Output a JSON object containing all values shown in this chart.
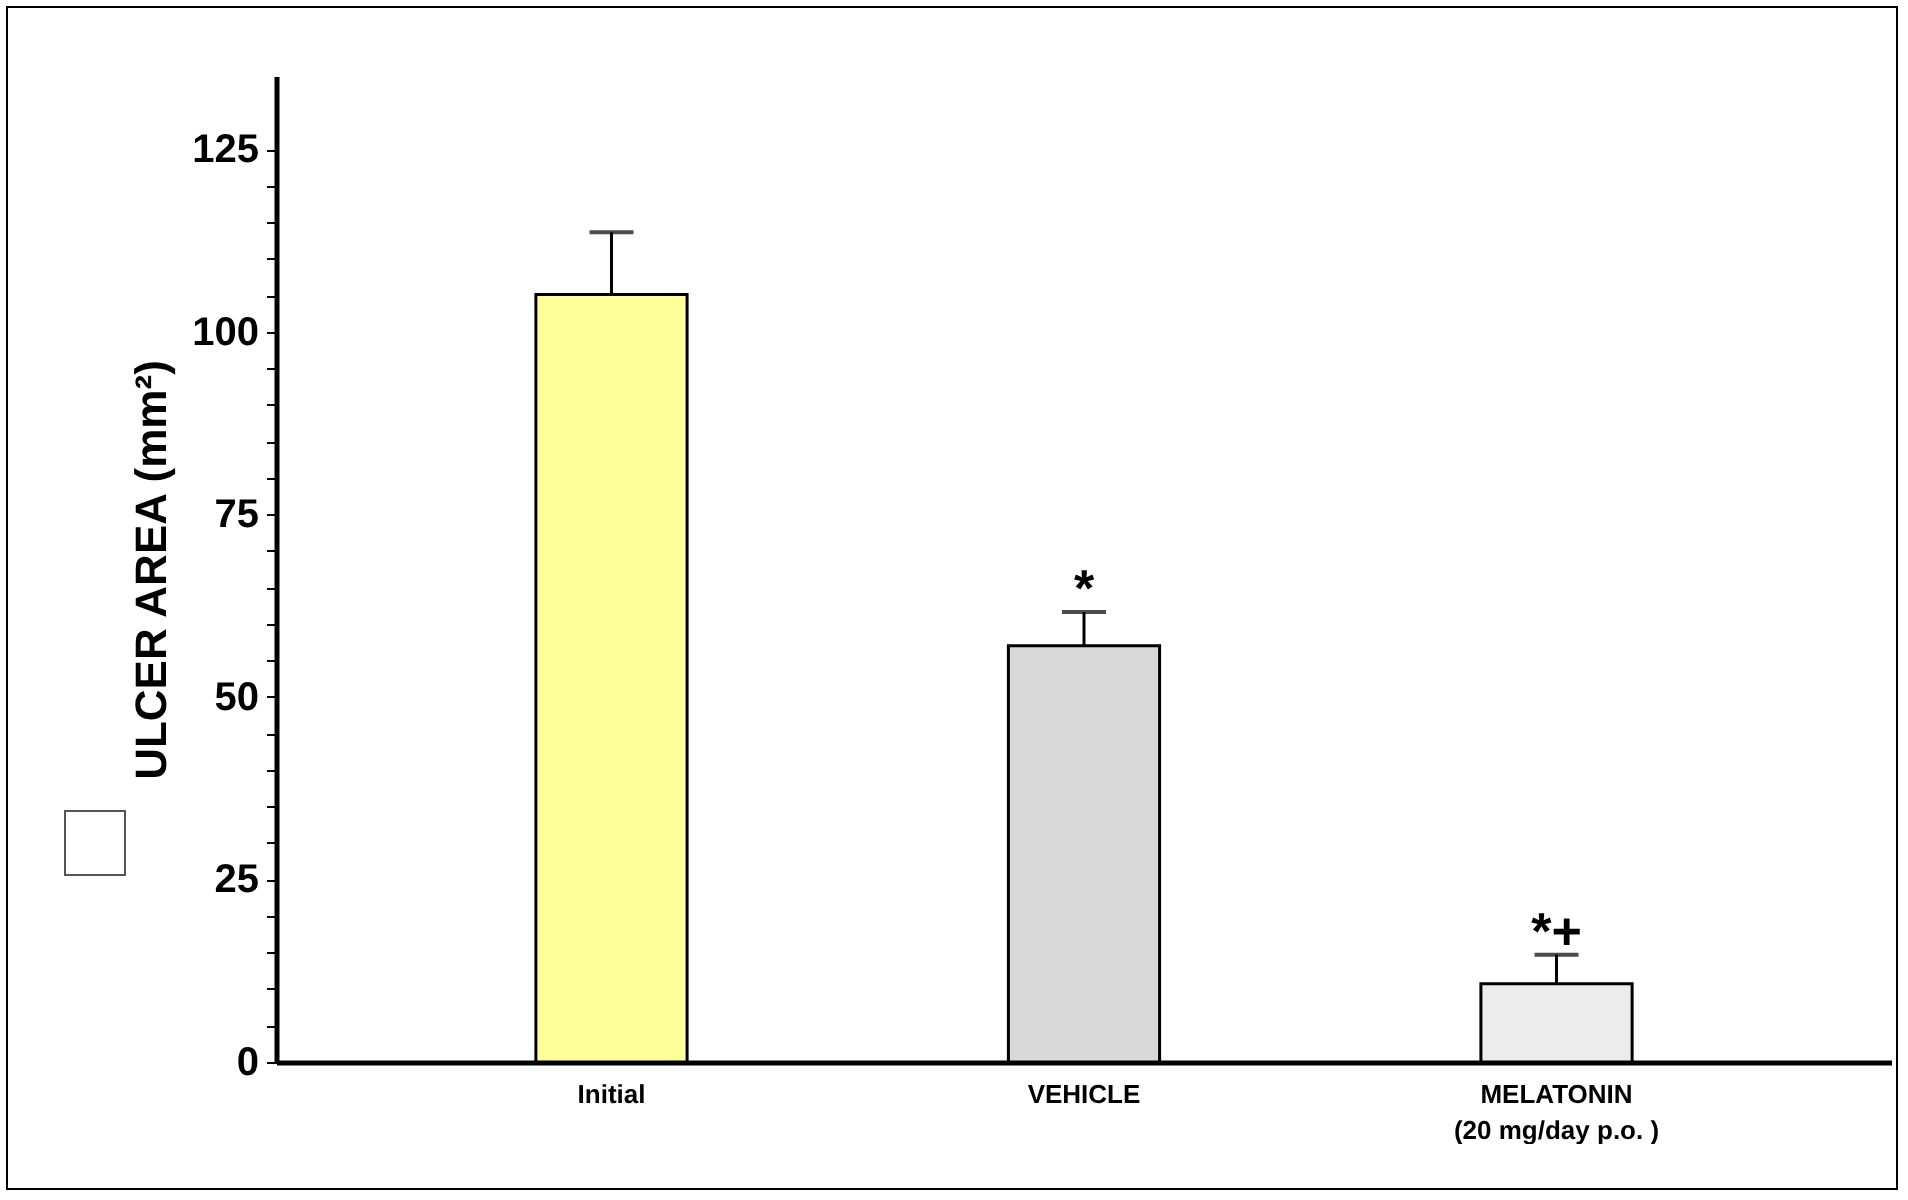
{
  "chart_data": {
    "type": "bar",
    "ylabel": "ULCER AREA (mm²)",
    "categories": [
      "Initial",
      "VEHICLE",
      "MELATONIN\n(20 mg/day p.o. )"
    ],
    "values": [
      105.1,
      57.0,
      10.7
    ],
    "colors": [
      "#ffff99",
      "#d9d9d9",
      "#ececec"
    ],
    "errors": [
      [
        105.1,
        113.6
      ],
      [
        57.0,
        61.6
      ],
      [
        10.7,
        14.7
      ]
    ],
    "ylim": [
      0,
      135
    ],
    "yticks": [
      0,
      {
        "value": 5,
        "label": null
      },
      {
        "value": 10,
        "label": null
      },
      {
        "value": 15,
        "label": null
      },
      {
        "value": 20,
        "label": null
      },
      25,
      {
        "value": 30,
        "label": null
      },
      {
        "value": 35,
        "label": null
      },
      {
        "value": 40,
        "label": null
      },
      {
        "value": 45,
        "label": null
      },
      50,
      {
        "value": 55,
        "label": null
      },
      {
        "value": 60,
        "label": null
      },
      {
        "value": 65,
        "label": null
      },
      {
        "value": 70,
        "label": null
      },
      75,
      {
        "value": 80,
        "label": null
      },
      {
        "value": 85,
        "label": null
      },
      {
        "value": 90,
        "label": null
      },
      {
        "value": 95,
        "label": null
      },
      100,
      {
        "value": 105,
        "label": null
      },
      {
        "value": 110,
        "label": null
      },
      {
        "value": 115,
        "label": null
      },
      {
        "value": 120,
        "label": null
      },
      125
    ],
    "annotations": [
      {
        "text": "*",
        "x": "VEHICLE",
        "y": 61.6
      },
      {
        "text": "*+",
        "x": "MELATONIN\n(20 mg/day p.o. )",
        "y": 14.7
      }
    ]
  }
}
